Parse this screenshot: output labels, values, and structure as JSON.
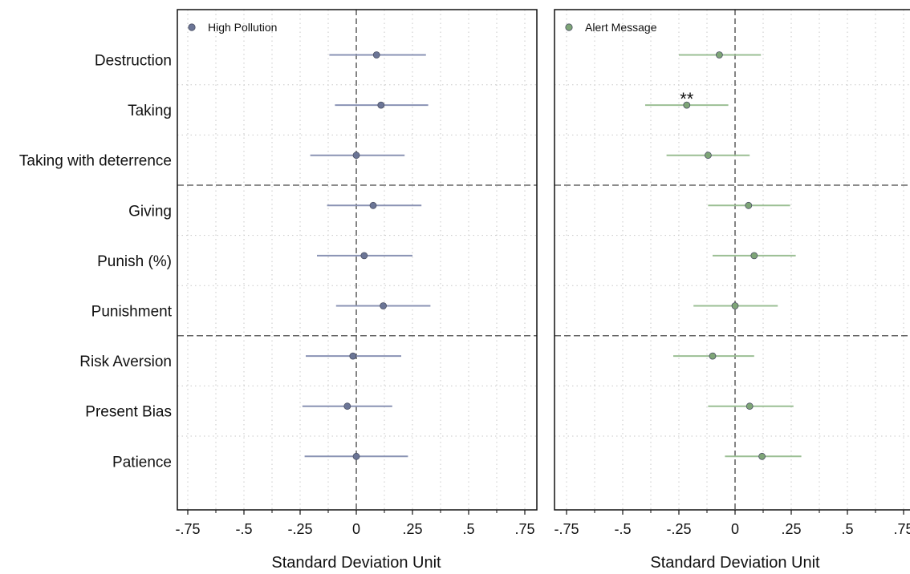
{
  "chart_data": {
    "type": "coefficient_plot",
    "categories": [
      "Destruction",
      "Taking",
      "Taking with deterrence",
      "Giving",
      "Punish (%)",
      "Punishment",
      "Risk Aversion",
      "Present Bias",
      "Patience"
    ],
    "group_separators_after": [
      2,
      5
    ],
    "xlim": [
      -0.8,
      0.8
    ],
    "x_ticks": [
      -0.75,
      -0.5,
      -0.25,
      0,
      0.25,
      0.5,
      0.75
    ],
    "x_tick_labels": [
      "-.75",
      "-.5",
      "-.25",
      "0",
      ".25",
      ".5",
      ".75"
    ],
    "reference_line_x": 0,
    "grid": true,
    "legend_position": "top-left",
    "panels": [
      {
        "legend": "High Pollution",
        "xlabel": "Standard Deviation Unit",
        "color": "#6b7596",
        "ci_color": "#8a93b4",
        "estimates": [
          0.09,
          0.11,
          0.0,
          0.075,
          0.035,
          0.12,
          -0.015,
          -0.04,
          0.0
        ],
        "ci_low": [
          -0.12,
          -0.095,
          -0.205,
          -0.13,
          -0.175,
          -0.09,
          -0.225,
          -0.24,
          -0.23
        ],
        "ci_high": [
          0.31,
          0.32,
          0.215,
          0.29,
          0.25,
          0.33,
          0.2,
          0.16,
          0.23
        ],
        "annotations": []
      },
      {
        "legend": "Alert Message",
        "xlabel": "Standard Deviation Unit",
        "color": "#7ea577",
        "ci_color": "#9bbf94",
        "estimates": [
          -0.07,
          -0.215,
          -0.12,
          0.06,
          0.085,
          0.0,
          -0.1,
          0.065,
          0.12
        ],
        "ci_low": [
          -0.25,
          -0.4,
          -0.305,
          -0.12,
          -0.1,
          -0.185,
          -0.275,
          -0.12,
          -0.045
        ],
        "ci_high": [
          0.115,
          -0.03,
          0.065,
          0.245,
          0.27,
          0.19,
          0.085,
          0.26,
          0.295
        ],
        "annotations": [
          {
            "category_index": 1,
            "text": "**"
          }
        ]
      }
    ]
  }
}
